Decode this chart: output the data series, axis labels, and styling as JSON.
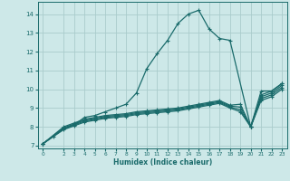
{
  "xlabel": "Humidex (Indice chaleur)",
  "background_color": "#cde8e8",
  "grid_color": "#aacccc",
  "line_color": "#1a6b6b",
  "xlim": [
    -0.5,
    23.5
  ],
  "ylim": [
    6.85,
    14.65
  ],
  "yticks": [
    7,
    8,
    9,
    10,
    11,
    12,
    13,
    14
  ],
  "xticks": [
    0,
    2,
    3,
    4,
    5,
    6,
    7,
    8,
    9,
    10,
    11,
    12,
    13,
    14,
    15,
    16,
    17,
    18,
    19,
    20,
    21,
    22,
    23
  ],
  "lines": [
    {
      "x": [
        0,
        1,
        2,
        3,
        4,
        5,
        6,
        7,
        8,
        9,
        10,
        11,
        12,
        13,
        14,
        15,
        16,
        17,
        18,
        20,
        21,
        22,
        23
      ],
      "y": [
        7.1,
        7.5,
        7.9,
        8.1,
        8.5,
        8.6,
        8.8,
        9.0,
        9.2,
        9.8,
        11.1,
        11.9,
        12.6,
        13.5,
        14.0,
        14.2,
        13.2,
        12.7,
        12.6,
        8.0,
        9.9,
        9.9,
        10.3
      ]
    },
    {
      "x": [
        0,
        2,
        3,
        4,
        5,
        6,
        7,
        8,
        9,
        10,
        11,
        12,
        13,
        14,
        15,
        16,
        17,
        18,
        19,
        20,
        21,
        22,
        23
      ],
      "y": [
        7.1,
        8.0,
        8.2,
        8.4,
        8.5,
        8.6,
        8.65,
        8.7,
        8.8,
        8.85,
        8.9,
        8.95,
        9.0,
        9.1,
        9.2,
        9.3,
        9.4,
        9.15,
        9.2,
        8.0,
        9.7,
        9.9,
        10.3
      ]
    },
    {
      "x": [
        0,
        2,
        3,
        4,
        5,
        6,
        7,
        8,
        9,
        10,
        11,
        12,
        13,
        14,
        15,
        16,
        17,
        18,
        19,
        20,
        21,
        22,
        23
      ],
      "y": [
        7.1,
        7.95,
        8.15,
        8.35,
        8.45,
        8.55,
        8.6,
        8.65,
        8.75,
        8.8,
        8.85,
        8.9,
        8.95,
        9.05,
        9.15,
        9.25,
        9.35,
        9.1,
        9.05,
        8.0,
        9.6,
        9.8,
        10.2
      ]
    },
    {
      "x": [
        0,
        2,
        3,
        4,
        5,
        6,
        7,
        8,
        9,
        10,
        11,
        12,
        13,
        14,
        15,
        16,
        17,
        18,
        19,
        20,
        21,
        22,
        23
      ],
      "y": [
        7.1,
        7.9,
        8.1,
        8.3,
        8.4,
        8.5,
        8.55,
        8.6,
        8.7,
        8.75,
        8.8,
        8.85,
        8.9,
        9.0,
        9.1,
        9.2,
        9.3,
        9.05,
        8.9,
        8.0,
        9.5,
        9.7,
        10.1
      ]
    },
    {
      "x": [
        0,
        2,
        3,
        4,
        5,
        6,
        7,
        8,
        9,
        10,
        11,
        12,
        13,
        14,
        15,
        16,
        17,
        18,
        19,
        20,
        21,
        22,
        23
      ],
      "y": [
        7.1,
        7.85,
        8.05,
        8.25,
        8.35,
        8.45,
        8.5,
        8.55,
        8.65,
        8.7,
        8.75,
        8.8,
        8.85,
        8.95,
        9.05,
        9.15,
        9.25,
        9.0,
        8.8,
        8.0,
        9.4,
        9.6,
        10.0
      ]
    }
  ],
  "marker": "+",
  "markersize": 3.5,
  "linewidth": 0.9
}
